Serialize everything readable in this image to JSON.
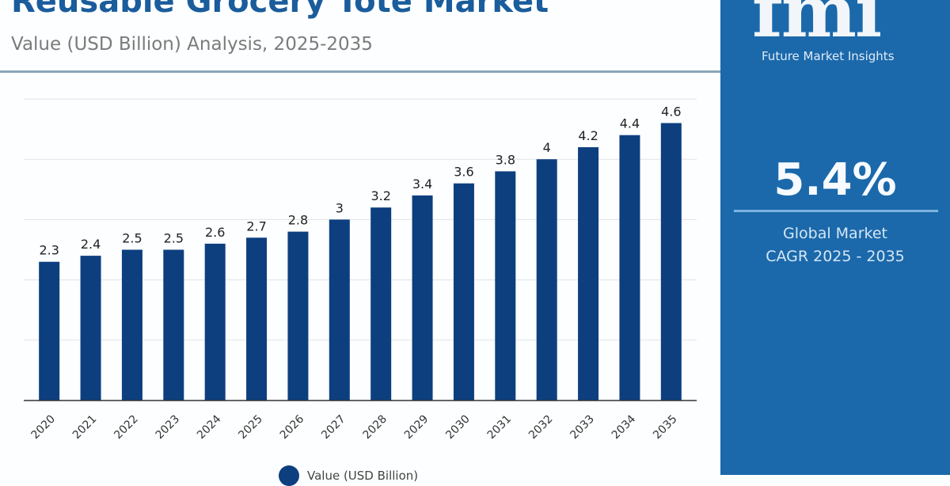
{
  "header": {
    "title": "Reusable Grocery Tote Market",
    "subtitle": "Value (USD Billion) Analysis, 2025-2035"
  },
  "side_panel": {
    "logo_text": "fmi",
    "logo_caption": "Future Market Insights",
    "cagr": "5.4%",
    "label_line1": "Global Market",
    "label_line2": "CAGR 2025 - 2035",
    "background": "#1b69ab"
  },
  "chart_data": {
    "type": "bar",
    "categories": [
      "2020",
      "2021",
      "2022",
      "2023",
      "2024",
      "2025",
      "2026",
      "2027",
      "2028",
      "2029",
      "2030",
      "2031",
      "2032",
      "2033",
      "2034",
      "2035"
    ],
    "series": [
      {
        "name": "Value (USD Billion)",
        "values": [
          2.3,
          2.4,
          2.5,
          2.5,
          2.6,
          2.7,
          2.8,
          3,
          3.2,
          3.4,
          3.6,
          3.8,
          4,
          4.2,
          4.4,
          4.6
        ],
        "color": "#0d3f7f"
      }
    ],
    "data_labels": [
      "2.3",
      "2.4",
      "2.5",
      "2.5",
      "2.6",
      "2.7",
      "2.8",
      "3",
      "3.2",
      "3.4",
      "3.6",
      "3.8",
      "4",
      "4.2",
      "4.4",
      "4.6"
    ],
    "ylim": [
      0,
      5
    ],
    "grid": true,
    "legend": "bottom-center",
    "xlabel": "",
    "ylabel": ""
  }
}
